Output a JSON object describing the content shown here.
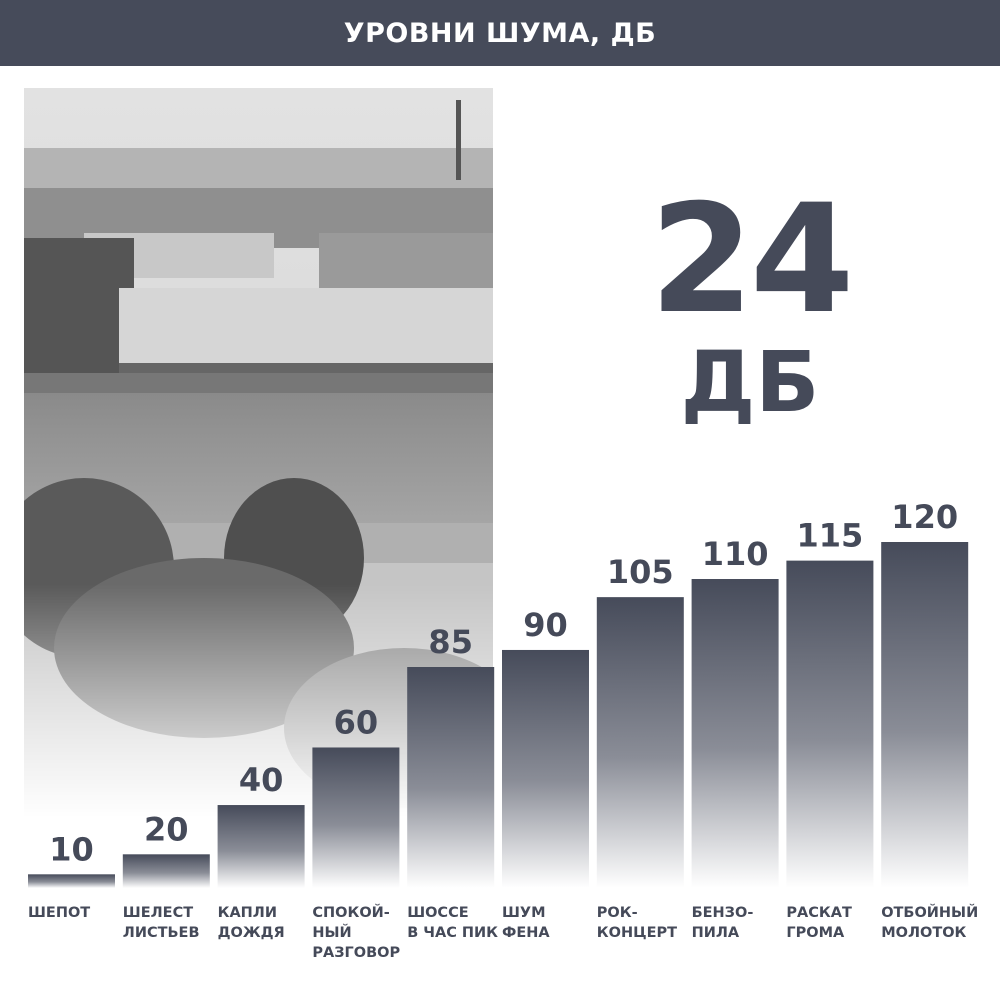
{
  "header": {
    "title": "УРОВНИ ШУМА, ДБ"
  },
  "highlight": {
    "value": "24",
    "unit": "ДБ"
  },
  "colors": {
    "bar": "#464b5a",
    "header": "#464b5a",
    "text": "#454a59"
  },
  "chart_data": {
    "type": "bar",
    "title": "УРОВНИ ШУМА, ДБ",
    "categories": [
      "ШЕПОТ",
      "ШЕЛЕСТ\nЛИСТЬЕВ",
      "КАПЛИ\nДОЖДЯ",
      "СПОКОЙ-\nНЫЙ\nРАЗГОВОР",
      "ШОССЕ\nВ ЧАС ПИК",
      "ШУМ\nФЕНА",
      "РОК-\nКОНЦЕРТ",
      "БЕНЗО-\nПИЛА",
      "РАСКАТ\nГРОМА",
      "ОТБОЙНЫЙ\nМОЛОТОК"
    ],
    "values": [
      10,
      20,
      40,
      60,
      85,
      90,
      105,
      110,
      115,
      120
    ],
    "data_labels": [
      "10",
      "20",
      "40",
      "60",
      "85",
      "90",
      "105",
      "110",
      "115",
      "120"
    ],
    "xlabel": "",
    "ylabel": "",
    "grid": false
  }
}
